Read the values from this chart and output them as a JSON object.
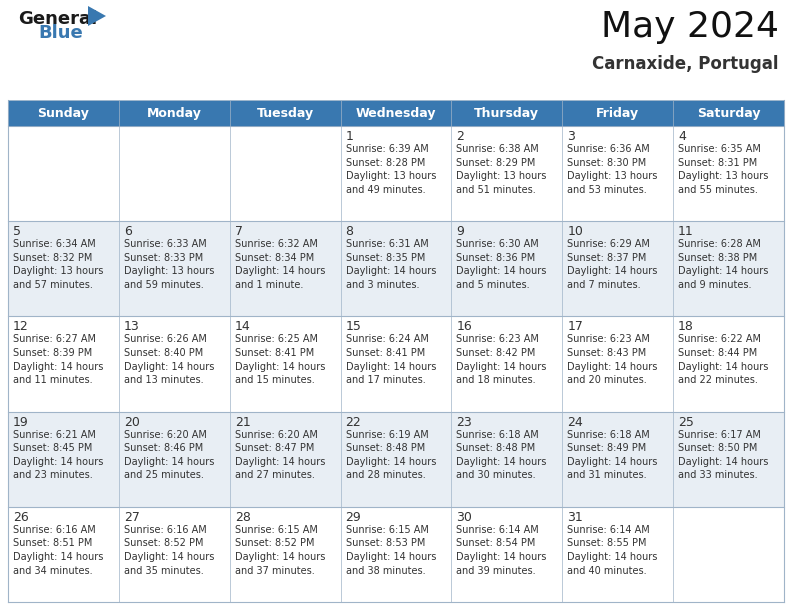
{
  "title": "May 2024",
  "subtitle": "Carnaxide, Portugal",
  "header_color": "#3978B0",
  "header_text_color": "#FFFFFF",
  "bg_color": "#FFFFFF",
  "alt_row_color": "#E8EEF4",
  "cell_text_color": "#333333",
  "border_color": "#A0B4C8",
  "days_of_week": [
    "Sunday",
    "Monday",
    "Tuesday",
    "Wednesday",
    "Thursday",
    "Friday",
    "Saturday"
  ],
  "weeks": [
    [
      {
        "day": "",
        "info": ""
      },
      {
        "day": "",
        "info": ""
      },
      {
        "day": "",
        "info": ""
      },
      {
        "day": "1",
        "info": "Sunrise: 6:39 AM\nSunset: 8:28 PM\nDaylight: 13 hours\nand 49 minutes."
      },
      {
        "day": "2",
        "info": "Sunrise: 6:38 AM\nSunset: 8:29 PM\nDaylight: 13 hours\nand 51 minutes."
      },
      {
        "day": "3",
        "info": "Sunrise: 6:36 AM\nSunset: 8:30 PM\nDaylight: 13 hours\nand 53 minutes."
      },
      {
        "day": "4",
        "info": "Sunrise: 6:35 AM\nSunset: 8:31 PM\nDaylight: 13 hours\nand 55 minutes."
      }
    ],
    [
      {
        "day": "5",
        "info": "Sunrise: 6:34 AM\nSunset: 8:32 PM\nDaylight: 13 hours\nand 57 minutes."
      },
      {
        "day": "6",
        "info": "Sunrise: 6:33 AM\nSunset: 8:33 PM\nDaylight: 13 hours\nand 59 minutes."
      },
      {
        "day": "7",
        "info": "Sunrise: 6:32 AM\nSunset: 8:34 PM\nDaylight: 14 hours\nand 1 minute."
      },
      {
        "day": "8",
        "info": "Sunrise: 6:31 AM\nSunset: 8:35 PM\nDaylight: 14 hours\nand 3 minutes."
      },
      {
        "day": "9",
        "info": "Sunrise: 6:30 AM\nSunset: 8:36 PM\nDaylight: 14 hours\nand 5 minutes."
      },
      {
        "day": "10",
        "info": "Sunrise: 6:29 AM\nSunset: 8:37 PM\nDaylight: 14 hours\nand 7 minutes."
      },
      {
        "day": "11",
        "info": "Sunrise: 6:28 AM\nSunset: 8:38 PM\nDaylight: 14 hours\nand 9 minutes."
      }
    ],
    [
      {
        "day": "12",
        "info": "Sunrise: 6:27 AM\nSunset: 8:39 PM\nDaylight: 14 hours\nand 11 minutes."
      },
      {
        "day": "13",
        "info": "Sunrise: 6:26 AM\nSunset: 8:40 PM\nDaylight: 14 hours\nand 13 minutes."
      },
      {
        "day": "14",
        "info": "Sunrise: 6:25 AM\nSunset: 8:41 PM\nDaylight: 14 hours\nand 15 minutes."
      },
      {
        "day": "15",
        "info": "Sunrise: 6:24 AM\nSunset: 8:41 PM\nDaylight: 14 hours\nand 17 minutes."
      },
      {
        "day": "16",
        "info": "Sunrise: 6:23 AM\nSunset: 8:42 PM\nDaylight: 14 hours\nand 18 minutes."
      },
      {
        "day": "17",
        "info": "Sunrise: 6:23 AM\nSunset: 8:43 PM\nDaylight: 14 hours\nand 20 minutes."
      },
      {
        "day": "18",
        "info": "Sunrise: 6:22 AM\nSunset: 8:44 PM\nDaylight: 14 hours\nand 22 minutes."
      }
    ],
    [
      {
        "day": "19",
        "info": "Sunrise: 6:21 AM\nSunset: 8:45 PM\nDaylight: 14 hours\nand 23 minutes."
      },
      {
        "day": "20",
        "info": "Sunrise: 6:20 AM\nSunset: 8:46 PM\nDaylight: 14 hours\nand 25 minutes."
      },
      {
        "day": "21",
        "info": "Sunrise: 6:20 AM\nSunset: 8:47 PM\nDaylight: 14 hours\nand 27 minutes."
      },
      {
        "day": "22",
        "info": "Sunrise: 6:19 AM\nSunset: 8:48 PM\nDaylight: 14 hours\nand 28 minutes."
      },
      {
        "day": "23",
        "info": "Sunrise: 6:18 AM\nSunset: 8:48 PM\nDaylight: 14 hours\nand 30 minutes."
      },
      {
        "day": "24",
        "info": "Sunrise: 6:18 AM\nSunset: 8:49 PM\nDaylight: 14 hours\nand 31 minutes."
      },
      {
        "day": "25",
        "info": "Sunrise: 6:17 AM\nSunset: 8:50 PM\nDaylight: 14 hours\nand 33 minutes."
      }
    ],
    [
      {
        "day": "26",
        "info": "Sunrise: 6:16 AM\nSunset: 8:51 PM\nDaylight: 14 hours\nand 34 minutes."
      },
      {
        "day": "27",
        "info": "Sunrise: 6:16 AM\nSunset: 8:52 PM\nDaylight: 14 hours\nand 35 minutes."
      },
      {
        "day": "28",
        "info": "Sunrise: 6:15 AM\nSunset: 8:52 PM\nDaylight: 14 hours\nand 37 minutes."
      },
      {
        "day": "29",
        "info": "Sunrise: 6:15 AM\nSunset: 8:53 PM\nDaylight: 14 hours\nand 38 minutes."
      },
      {
        "day": "30",
        "info": "Sunrise: 6:14 AM\nSunset: 8:54 PM\nDaylight: 14 hours\nand 39 minutes."
      },
      {
        "day": "31",
        "info": "Sunrise: 6:14 AM\nSunset: 8:55 PM\nDaylight: 14 hours\nand 40 minutes."
      },
      {
        "day": "",
        "info": ""
      }
    ]
  ],
  "logo_general_color": "#1A1A1A",
  "logo_blue_color": "#3978B0",
  "logo_triangle_color": "#3978B0",
  "title_fontsize": 26,
  "subtitle_fontsize": 12,
  "dow_fontsize": 9,
  "day_num_fontsize": 9,
  "cell_info_fontsize": 7
}
